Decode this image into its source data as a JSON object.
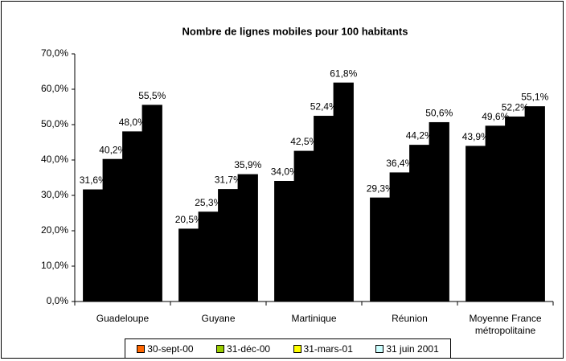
{
  "chart_data": {
    "type": "bar",
    "title": "Nombre de lignes mobiles pour 100 habitants",
    "categories": [
      "Guadeloupe",
      "Guyane",
      "Martinique",
      "Réunion",
      "Moyenne France métropolitaine"
    ],
    "series": [
      {
        "name": "30-sept-00",
        "color": "#ff6600",
        "values": [
          31.6,
          20.5,
          34.0,
          29.3,
          43.9
        ],
        "value_labels": [
          "31,6%",
          "20,5%",
          "34,0%",
          "29,3%",
          "43,9%"
        ]
      },
      {
        "name": "31-déc-00",
        "color": "#99cc00",
        "values": [
          40.2,
          25.3,
          42.5,
          36.4,
          49.6
        ],
        "value_labels": [
          "40,2%",
          "25,3%",
          "42,5%",
          "36,4%",
          "49,6%"
        ]
      },
      {
        "name": "31-mars-01",
        "color": "#ffff00",
        "values": [
          48.0,
          31.7,
          52.4,
          44.2,
          52.2
        ],
        "value_labels": [
          "48,0%",
          "31,7%",
          "52,4%",
          "44,2%",
          "52,2%"
        ]
      },
      {
        "name": "31 juin 2001",
        "color": "#ccffff",
        "values": [
          55.5,
          35.9,
          61.8,
          50.6,
          55.1
        ],
        "value_labels": [
          "55,5%",
          "35,9%",
          "61,8%",
          "50,6%",
          "55,1%"
        ]
      }
    ],
    "ylim": [
      0,
      70
    ],
    "yticks": [
      {
        "value": 0,
        "label": "0,0%"
      },
      {
        "value": 10,
        "label": "10,0%"
      },
      {
        "value": 20,
        "label": "20,0%"
      },
      {
        "value": 30,
        "label": "30,0%"
      },
      {
        "value": 40,
        "label": "40,0%"
      },
      {
        "value": 50,
        "label": "50,0%"
      },
      {
        "value": 60,
        "label": "60,0%"
      },
      {
        "value": 70,
        "label": "70,0%"
      }
    ],
    "legend": "bottom"
  }
}
